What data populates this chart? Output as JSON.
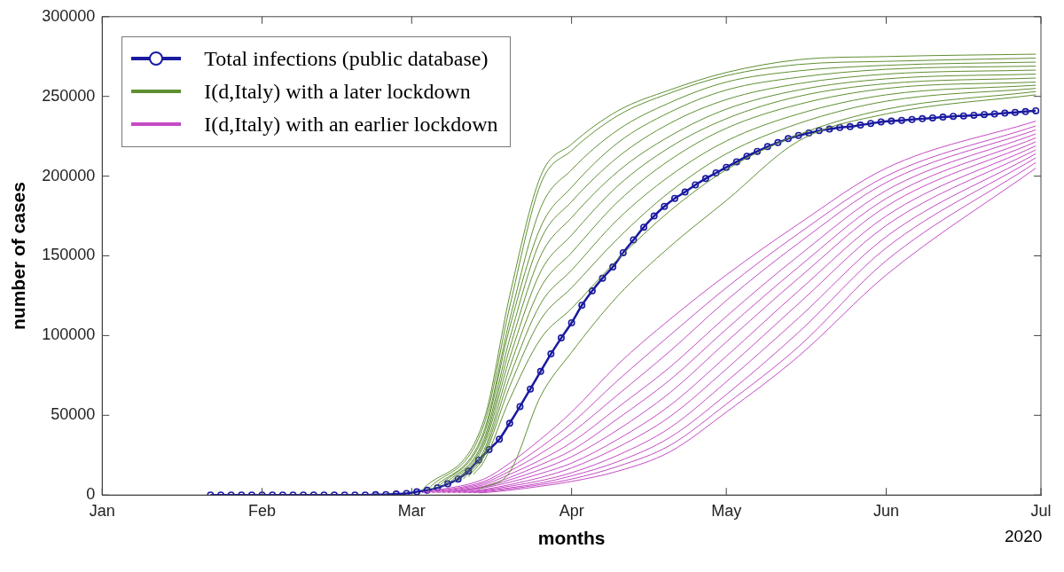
{
  "chart_data": {
    "type": "line",
    "xlabel": "months",
    "ylabel": "number of cases",
    "annotations": [
      "2020"
    ],
    "legend": "top left",
    "grid": false,
    "xlim": [
      "2020-01-01",
      "2020-07-01"
    ],
    "xticks": [
      {
        "value": "2020-01-01",
        "label": "Jan"
      },
      {
        "value": "2020-02-01",
        "label": "Feb"
      },
      {
        "value": "2020-03-01",
        "label": "Mar"
      },
      {
        "value": "2020-04-01",
        "label": "Apr"
      },
      {
        "value": "2020-05-01",
        "label": "May"
      },
      {
        "value": "2020-06-01",
        "label": "Jun"
      },
      {
        "value": "2020-07-01",
        "label": "Jul"
      }
    ],
    "ylim": [
      0,
      300000
    ],
    "yticks": [
      0,
      50000,
      100000,
      150000,
      200000,
      250000,
      300000
    ],
    "series": [
      {
        "name": "Total infections (public database)",
        "color": "#1a1aa0",
        "marker": "circle",
        "x": [
          "2020-01-22",
          "2020-01-24",
          "2020-01-26",
          "2020-01-28",
          "2020-01-30",
          "2020-02-01",
          "2020-02-03",
          "2020-02-05",
          "2020-02-07",
          "2020-02-09",
          "2020-02-11",
          "2020-02-13",
          "2020-02-15",
          "2020-02-17",
          "2020-02-19",
          "2020-02-21",
          "2020-02-23",
          "2020-02-25",
          "2020-02-27",
          "2020-02-29",
          "2020-03-02",
          "2020-03-04",
          "2020-03-06",
          "2020-03-08",
          "2020-03-10",
          "2020-03-12",
          "2020-03-14",
          "2020-03-16",
          "2020-03-18",
          "2020-03-20",
          "2020-03-22",
          "2020-03-24",
          "2020-03-26",
          "2020-03-28",
          "2020-03-30",
          "2020-04-01",
          "2020-04-03",
          "2020-04-05",
          "2020-04-07",
          "2020-04-09",
          "2020-04-11",
          "2020-04-13",
          "2020-04-15",
          "2020-04-17",
          "2020-04-19",
          "2020-04-21",
          "2020-04-23",
          "2020-04-25",
          "2020-04-27",
          "2020-04-29",
          "2020-05-01",
          "2020-05-03",
          "2020-05-05",
          "2020-05-07",
          "2020-05-09",
          "2020-05-11",
          "2020-05-13",
          "2020-05-15",
          "2020-05-17",
          "2020-05-19",
          "2020-05-21",
          "2020-05-23",
          "2020-05-25",
          "2020-05-27",
          "2020-05-29",
          "2020-05-31",
          "2020-06-02",
          "2020-06-04",
          "2020-06-06",
          "2020-06-08",
          "2020-06-10",
          "2020-06-12",
          "2020-06-14",
          "2020-06-16",
          "2020-06-18",
          "2020-06-20",
          "2020-06-22",
          "2020-06-24",
          "2020-06-26",
          "2020-06-28",
          "2020-06-30"
        ],
        "values": [
          0,
          0,
          0,
          0,
          0,
          0,
          0,
          0,
          0,
          0,
          0,
          0,
          0,
          0,
          0,
          0,
          200,
          300,
          600,
          1000,
          2000,
          3000,
          4500,
          7000,
          10000,
          15000,
          22000,
          28500,
          35000,
          45000,
          55500,
          66500,
          77500,
          88500,
          98500,
          108000,
          119000,
          128000,
          136000,
          143000,
          152000,
          160000,
          168000,
          175000,
          181000,
          186000,
          190000,
          194500,
          198500,
          202000,
          205500,
          209000,
          212500,
          215500,
          218500,
          221000,
          223500,
          225500,
          227000,
          228500,
          229500,
          230500,
          231000,
          232000,
          233000,
          234000,
          234500,
          235000,
          235500,
          236000,
          236500,
          237000,
          237500,
          237800,
          238200,
          238600,
          239000,
          239500,
          240000,
          240500,
          241000
        ]
      },
      {
        "name": "I(d,Italy) with a later lockdown",
        "color": "#5f8f32",
        "x": [
          "2020-03-03",
          "2020-03-15",
          "2020-03-20",
          "2020-03-26",
          "2020-04-01",
          "2020-04-10",
          "2020-04-20",
          "2020-05-01",
          "2020-05-15",
          "2020-06-01",
          "2020-06-30"
        ],
        "values": [
          3000,
          47000,
          125000,
          200000,
          220000,
          241000,
          254000,
          265000,
          273000,
          275000,
          276500
        ]
      },
      {
        "color": "#5f8f32",
        "x": [
          "2020-03-04",
          "2020-03-15",
          "2020-03-20",
          "2020-03-26",
          "2020-04-01",
          "2020-04-10",
          "2020-04-20",
          "2020-05-01",
          "2020-05-15",
          "2020-06-01",
          "2020-06-30"
        ],
        "values": [
          3000,
          44000,
          118000,
          195000,
          216000,
          238000,
          252000,
          263000,
          270000,
          272000,
          274000
        ]
      },
      {
        "color": "#5f8f32",
        "x": [
          "2020-03-05",
          "2020-03-15",
          "2020-03-20",
          "2020-03-26",
          "2020-04-01",
          "2020-04-10",
          "2020-04-20",
          "2020-05-01",
          "2020-05-15",
          "2020-06-01",
          "2020-06-30"
        ],
        "values": [
          3500,
          40000,
          110000,
          180000,
          204000,
          229000,
          246000,
          259000,
          266000,
          269500,
          271500
        ]
      },
      {
        "color": "#5f8f32",
        "x": [
          "2020-03-06",
          "2020-03-15",
          "2020-03-20",
          "2020-03-26",
          "2020-04-01",
          "2020-04-10",
          "2020-04-20",
          "2020-05-01",
          "2020-05-15",
          "2020-06-01",
          "2020-06-30"
        ],
        "values": [
          4500,
          38000,
          105000,
          168000,
          193000,
          221000,
          240000,
          254000,
          262000,
          267000,
          269000
        ]
      },
      {
        "color": "#5f8f32",
        "x": [
          "2020-03-07",
          "2020-03-15",
          "2020-03-20",
          "2020-03-26",
          "2020-04-01",
          "2020-04-10",
          "2020-04-20",
          "2020-05-01",
          "2020-05-15",
          "2020-06-01",
          "2020-06-30"
        ],
        "values": [
          5500,
          35000,
          98000,
          160000,
          184000,
          212000,
          233000,
          248000,
          258000,
          264000,
          266500
        ]
      },
      {
        "color": "#5f8f32",
        "x": [
          "2020-03-08",
          "2020-03-15",
          "2020-03-20",
          "2020-03-26",
          "2020-04-01",
          "2020-04-10",
          "2020-04-20",
          "2020-05-01",
          "2020-05-15",
          "2020-06-01",
          "2020-06-30"
        ],
        "values": [
          6500,
          33000,
          92000,
          150000,
          174000,
          203000,
          225000,
          242000,
          254000,
          261000,
          264000
        ]
      },
      {
        "color": "#5f8f32",
        "x": [
          "2020-03-09",
          "2020-03-15",
          "2020-03-20",
          "2020-03-26",
          "2020-04-01",
          "2020-04-10",
          "2020-04-20",
          "2020-05-01",
          "2020-05-15",
          "2020-06-01",
          "2020-06-30"
        ],
        "values": [
          7500,
          31000,
          86000,
          140000,
          163000,
          194000,
          218000,
          236000,
          250000,
          258000,
          261500
        ]
      },
      {
        "color": "#5f8f32",
        "x": [
          "2020-03-10",
          "2020-03-15",
          "2020-03-20",
          "2020-03-26",
          "2020-04-01",
          "2020-04-10",
          "2020-04-20",
          "2020-05-01",
          "2020-05-15",
          "2020-06-01",
          "2020-06-30"
        ],
        "values": [
          9000,
          28000,
          80000,
          130000,
          152000,
          184000,
          210000,
          230000,
          245000,
          255000,
          259000
        ]
      },
      {
        "color": "#5f8f32",
        "x": [
          "2020-03-11",
          "2020-03-15",
          "2020-03-20",
          "2020-03-26",
          "2020-04-01",
          "2020-04-10",
          "2020-04-20",
          "2020-05-01",
          "2020-05-15",
          "2020-06-01",
          "2020-06-30"
        ],
        "values": [
          10000,
          26000,
          74000,
          120000,
          141000,
          173000,
          200000,
          222000,
          239000,
          251000,
          257000
        ]
      },
      {
        "color": "#5f8f32",
        "x": [
          "2020-03-12",
          "2020-03-15",
          "2020-03-20",
          "2020-03-26",
          "2020-04-01",
          "2020-04-10",
          "2020-04-20",
          "2020-05-01",
          "2020-05-15",
          "2020-06-01",
          "2020-06-30"
        ],
        "values": [
          11500,
          24000,
          68000,
          110000,
          130000,
          161000,
          190000,
          214000,
          233000,
          247000,
          255000
        ]
      },
      {
        "color": "#5f8f32",
        "x": [
          "2020-03-13",
          "2020-03-15",
          "2020-03-20",
          "2020-03-26",
          "2020-04-01",
          "2020-04-10",
          "2020-04-20",
          "2020-05-01",
          "2020-05-15",
          "2020-06-01",
          "2020-06-30"
        ],
        "values": [
          13000,
          21000,
          60000,
          98000,
          117000,
          148000,
          178000,
          204000,
          226000,
          242000,
          253000
        ]
      },
      {
        "color": "#5f8f32",
        "x": [
          "2020-03-14",
          "2020-03-15",
          "2020-03-20",
          "2020-03-26",
          "2020-04-01",
          "2020-04-10",
          "2020-04-20",
          "2020-05-01",
          "2020-05-15",
          "2020-06-01",
          "2020-06-30"
        ],
        "values": [
          4000,
          5000,
          14400,
          62000,
          89500,
          125000,
          155600,
          184700,
          222000,
          239000,
          251000
        ]
      },
      {
        "name": "I(d,Italy) with an earlier lockdown",
        "color": "#c44ac4",
        "x": [
          "2020-03-03",
          "2020-03-15",
          "2020-03-20",
          "2020-03-26",
          "2020-04-01",
          "2020-04-10",
          "2020-04-20",
          "2020-05-01",
          "2020-05-15",
          "2020-06-01",
          "2020-06-30"
        ],
        "values": [
          1500,
          10000,
          20000,
          35000,
          52000,
          82000,
          110000,
          138000,
          170000,
          205000,
          234500
        ]
      },
      {
        "color": "#c44ac4",
        "x": [
          "2020-03-04",
          "2020-03-15",
          "2020-03-20",
          "2020-03-26",
          "2020-04-01",
          "2020-04-10",
          "2020-04-20",
          "2020-05-01",
          "2020-05-15",
          "2020-06-01",
          "2020-06-30"
        ],
        "values": [
          1500,
          8500,
          17000,
          30000,
          45000,
          72000,
          100000,
          130000,
          164000,
          200000,
          231500
        ]
      },
      {
        "color": "#c44ac4",
        "x": [
          "2020-03-05",
          "2020-03-15",
          "2020-03-20",
          "2020-03-26",
          "2020-04-01",
          "2020-04-10",
          "2020-04-20",
          "2020-05-01",
          "2020-05-15",
          "2020-06-01",
          "2020-06-30"
        ],
        "values": [
          1500,
          7500,
          15000,
          26000,
          39000,
          63000,
          90000,
          122000,
          158000,
          196000,
          229000
        ]
      },
      {
        "color": "#c44ac4",
        "x": [
          "2020-03-06",
          "2020-03-15",
          "2020-03-20",
          "2020-03-26",
          "2020-04-01",
          "2020-04-10",
          "2020-04-20",
          "2020-05-01",
          "2020-05-15",
          "2020-06-01",
          "2020-06-30"
        ],
        "values": [
          1500,
          6500,
          13000,
          22000,
          33000,
          55000,
          80000,
          112000,
          150000,
          191000,
          226500
        ]
      },
      {
        "color": "#c44ac4",
        "x": [
          "2020-03-07",
          "2020-03-15",
          "2020-03-20",
          "2020-03-26",
          "2020-04-01",
          "2020-04-10",
          "2020-04-20",
          "2020-05-01",
          "2020-05-15",
          "2020-06-01",
          "2020-06-30"
        ],
        "values": [
          1500,
          5500,
          11000,
          19000,
          28000,
          48000,
          72000,
          104000,
          143000,
          186000,
          224000
        ]
      },
      {
        "color": "#c44ac4",
        "x": [
          "2020-03-08",
          "2020-03-15",
          "2020-03-20",
          "2020-03-26",
          "2020-04-01",
          "2020-04-10",
          "2020-04-20",
          "2020-05-01",
          "2020-05-15",
          "2020-06-01",
          "2020-06-30"
        ],
        "values": [
          1500,
          5000,
          9500,
          16000,
          24000,
          41000,
          64000,
          96000,
          136000,
          181000,
          221500
        ]
      },
      {
        "color": "#c44ac4",
        "x": [
          "2020-03-09",
          "2020-03-15",
          "2020-03-20",
          "2020-03-26",
          "2020-04-01",
          "2020-04-10",
          "2020-04-20",
          "2020-05-01",
          "2020-05-15",
          "2020-06-01",
          "2020-06-30"
        ],
        "values": [
          1500,
          4500,
          8000,
          13500,
          20000,
          35000,
          56000,
          87000,
          128000,
          175000,
          219000
        ]
      },
      {
        "color": "#c44ac4",
        "x": [
          "2020-03-10",
          "2020-03-15",
          "2020-03-20",
          "2020-03-26",
          "2020-04-01",
          "2020-04-10",
          "2020-04-20",
          "2020-05-01",
          "2020-05-15",
          "2020-06-01",
          "2020-06-30"
        ],
        "values": [
          1500,
          3500,
          6500,
          11000,
          17000,
          30000,
          49000,
          79000,
          120000,
          169000,
          216500
        ]
      },
      {
        "color": "#c44ac4",
        "x": [
          "2020-03-11",
          "2020-03-15",
          "2020-03-20",
          "2020-03-26",
          "2020-04-01",
          "2020-04-10",
          "2020-04-20",
          "2020-05-01",
          "2020-05-15",
          "2020-06-01",
          "2020-06-30"
        ],
        "values": [
          1500,
          3000,
          5500,
          9000,
          14000,
          25000,
          42000,
          71000,
          111000,
          162000,
          214000
        ]
      },
      {
        "color": "#c44ac4",
        "x": [
          "2020-03-12",
          "2020-03-15",
          "2020-03-20",
          "2020-03-26",
          "2020-04-01",
          "2020-04-10",
          "2020-04-20",
          "2020-05-01",
          "2020-05-15",
          "2020-06-01",
          "2020-06-30"
        ],
        "values": [
          1500,
          2500,
          4500,
          7500,
          12000,
          21000,
          36000,
          63000,
          102000,
          155000,
          211500
        ]
      },
      {
        "color": "#c44ac4",
        "x": [
          "2020-03-13",
          "2020-03-15",
          "2020-03-20",
          "2020-03-26",
          "2020-04-01",
          "2020-04-10",
          "2020-04-20",
          "2020-05-01",
          "2020-05-15",
          "2020-06-01",
          "2020-06-30"
        ],
        "values": [
          1500,
          2000,
          3800,
          6500,
          10000,
          18000,
          31000,
          57000,
          93000,
          147000,
          208500
        ]
      },
      {
        "color": "#c44ac4",
        "x": [
          "2020-03-14",
          "2020-03-15",
          "2020-03-20",
          "2020-03-26",
          "2020-04-01",
          "2020-04-10",
          "2020-04-20",
          "2020-05-01",
          "2020-05-15",
          "2020-06-01",
          "2020-06-30"
        ],
        "values": [
          1400,
          1500,
          3000,
          5500,
          8500,
          15000,
          27000,
          52000,
          87000,
          138000,
          205000
        ]
      }
    ]
  }
}
